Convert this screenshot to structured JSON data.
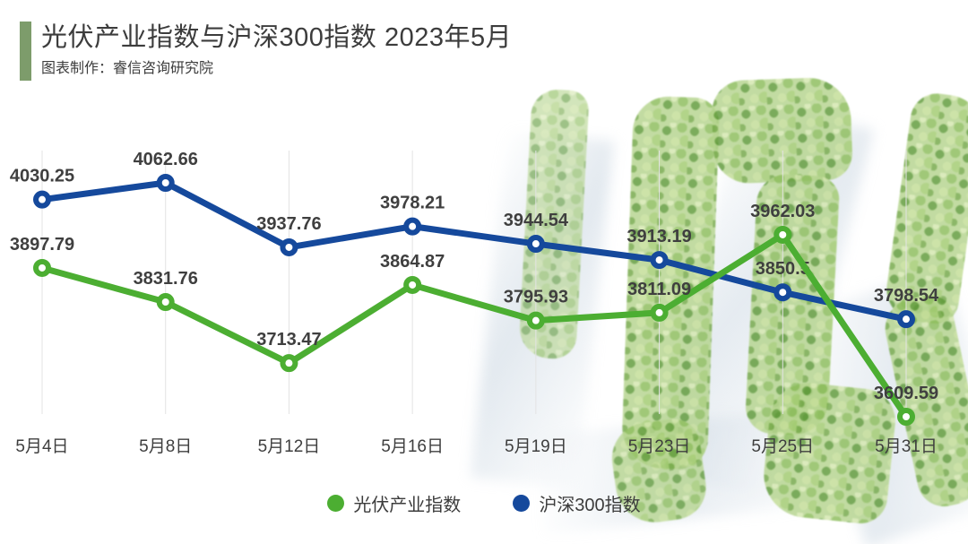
{
  "header": {
    "title": "光伏产业指数与沪深300指数 2023年5月",
    "subtitle": "图表制作：睿信咨询研究院",
    "accent_bar_color": "#7d9c6b"
  },
  "chart_data": {
    "type": "line",
    "title": "光伏产业指数与沪深300指数 2023年5月",
    "categories": [
      "5月4日",
      "5月8日",
      "5月12日",
      "5月16日",
      "5月19日",
      "5月23日",
      "5月25日",
      "5月31日"
    ],
    "series": [
      {
        "name": "光伏产业指数",
        "color": "#4cae32",
        "values": [
          3897.79,
          3831.76,
          3713.47,
          3864.87,
          3795.93,
          3811.09,
          3962.03,
          3609.59
        ]
      },
      {
        "name": "沪深300指数",
        "color": "#15499c",
        "values": [
          4030.25,
          4062.66,
          3937.76,
          3978.21,
          3944.54,
          3913.19,
          3850.5,
          3798.54
        ]
      }
    ],
    "xlabel": "",
    "ylabel": "",
    "ylim": [
      3609.59,
      4062.66
    ],
    "grid": "vertical-only",
    "gridline_color": "#e3e3e3",
    "data_labels": true,
    "legend_position": "bottom-center"
  },
  "legend": {
    "items": [
      {
        "label": "光伏产业指数",
        "color": "#4cae32"
      },
      {
        "label": "沪深300指数",
        "color": "#15499c"
      }
    ]
  }
}
